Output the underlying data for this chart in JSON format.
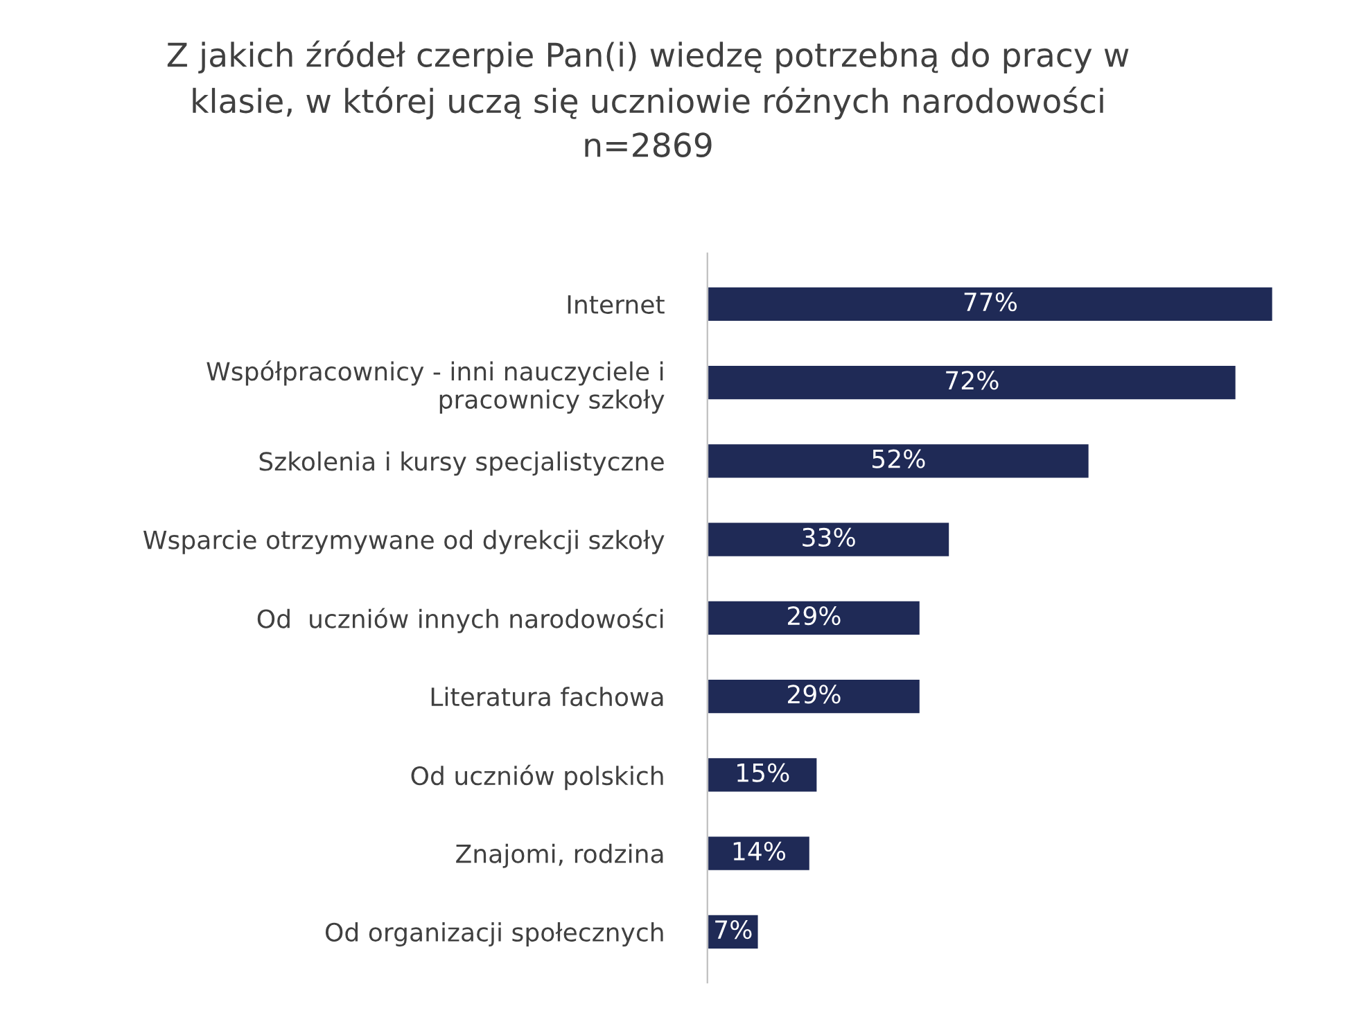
{
  "chart_data": {
    "type": "bar",
    "orientation": "horizontal",
    "title": "Z jakich źródeł czerpie Pan(i) wiedzę potrzebną do pracy w\nklasie, w której uczą się uczniowie różnych narodowości\nn=2869",
    "categories": [
      "Internet",
      "Współpracownicy - inni nauczyciele i\npracownicy szkoły",
      "Szkolenia i kursy specjalistyczne",
      "Wsparcie otrzymywane od dyrekcji szkoły",
      "Od  uczniów innych narodowości",
      "Literatura fachowa",
      "Od uczniów polskich",
      "Znajomi, rodzina",
      "Od organizacji społecznych"
    ],
    "values": [
      77,
      72,
      52,
      33,
      29,
      29,
      15,
      14,
      7
    ],
    "value_labels": [
      "77%",
      "72%",
      "52%",
      "33%",
      "29%",
      "29%",
      "15%",
      "14%",
      "7%"
    ],
    "color": "#1f2a56",
    "grid": false,
    "legend": false
  }
}
